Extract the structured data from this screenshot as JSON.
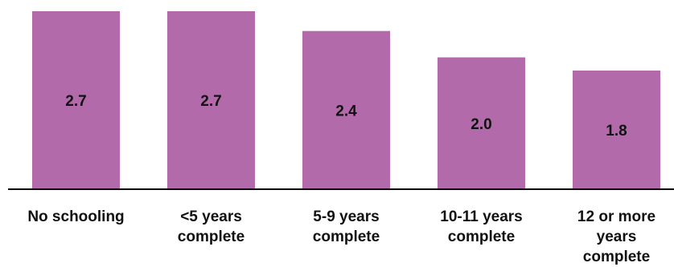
{
  "chart_data": {
    "type": "bar",
    "categories": [
      "No schooling",
      "<5 years complete",
      "5-9 years complete",
      "10-11 years complete",
      "12 or more years complete"
    ],
    "category_lines": [
      [
        "No schooling"
      ],
      [
        "<5 years",
        "complete"
      ],
      [
        "5-9 years",
        "complete"
      ],
      [
        "10-11 years",
        "complete"
      ],
      [
        "12 or more",
        "years",
        "complete"
      ]
    ],
    "values": [
      2.7,
      2.7,
      2.4,
      2.0,
      1.8
    ],
    "value_labels": [
      "2.7",
      "2.7",
      "2.4",
      "2.0",
      "1.8"
    ],
    "title": "",
    "xlabel": "",
    "ylabel": "",
    "ylim": [
      0,
      2.7
    ],
    "grid": false,
    "legend": "none",
    "colors": {
      "bar": "#b26aab",
      "axis": "#000000",
      "text": "#111111"
    }
  }
}
